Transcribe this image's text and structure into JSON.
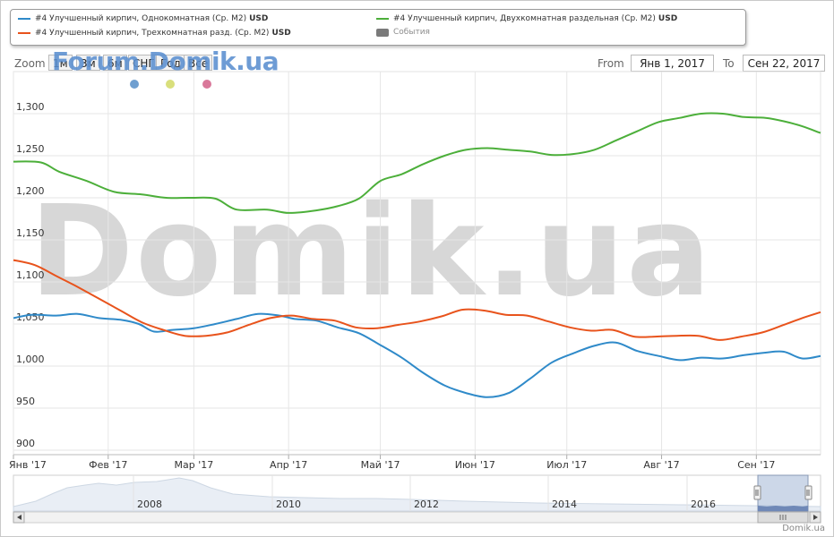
{
  "legend": {
    "items": [
      {
        "label": "#4 Улучшенный кирпич, Однокомнатная (Ср. М2)",
        "unit": "USD",
        "color": "#2f8ac9"
      },
      {
        "label": "#4 Улучшенный кирпич, Двухкомнатная раздельная (Ср. М2)",
        "unit": "USD",
        "color": "#4caf3a"
      },
      {
        "label": "#4 Улучшенный кирпич, Трехкомнатная разд. (Ср. М2)",
        "unit": "USD",
        "color": "#e8531c"
      },
      {
        "label": "События",
        "color": "#7a7a7a"
      }
    ]
  },
  "toolbar": {
    "zoom_label": "Zoom",
    "zoom_buttons": [
      "1м",
      "3м",
      "6м",
      "СНГ",
      "Год",
      "Всё"
    ],
    "watermark_brand": "Forum.Domik.ua",
    "from_label": "From",
    "from_value": "Янв 1, 2017",
    "to_label": "To",
    "to_value": "Сен 22, 2017"
  },
  "event_dot_colors": [
    "#6f9fd0",
    "#d9df7c",
    "#d9789a"
  ],
  "watermark": "Domik.ua",
  "footer": "Domik.ua",
  "chart_data": {
    "type": "line",
    "ylim": [
      900,
      1350
    ],
    "yticks": [
      900,
      950,
      1000,
      1050,
      1100,
      1150,
      1200,
      1250,
      1300
    ],
    "ytick_labels": [
      "900",
      "950",
      "1,000",
      "1,050",
      "1,100",
      "1,150",
      "1,200",
      "1,250",
      "1,300"
    ],
    "xlim": [
      "2017-01-01",
      "2017-09-22"
    ],
    "xticks": [
      "2017-01-01",
      "2017-02-01",
      "2017-03-01",
      "2017-04-01",
      "2017-05-01",
      "2017-06-01",
      "2017-07-01",
      "2017-08-01",
      "2017-09-01"
    ],
    "xtick_labels": [
      "Янв '17",
      "Фев '17",
      "Мар '17",
      "Апр '17",
      "Май '17",
      "Июн '17",
      "Июл '17",
      "Авг '17",
      "Сен '17"
    ],
    "grid": true,
    "series": [
      {
        "name": "#4 Улучшенный кирпич, Однокомнатная (Ср. М2)",
        "color": "#2f8ac9",
        "points": [
          [
            "2017-01-01",
            1057
          ],
          [
            "2017-01-07",
            1061
          ],
          [
            "2017-01-15",
            1060
          ],
          [
            "2017-01-22",
            1062
          ],
          [
            "2017-01-29",
            1057
          ],
          [
            "2017-02-05",
            1055
          ],
          [
            "2017-02-11",
            1050
          ],
          [
            "2017-02-16",
            1041
          ],
          [
            "2017-02-22",
            1043
          ],
          [
            "2017-03-01",
            1045
          ],
          [
            "2017-03-08",
            1050
          ],
          [
            "2017-03-15",
            1056
          ],
          [
            "2017-03-22",
            1062
          ],
          [
            "2017-03-29",
            1060
          ],
          [
            "2017-04-03",
            1056
          ],
          [
            "2017-04-10",
            1054
          ],
          [
            "2017-04-17",
            1046
          ],
          [
            "2017-04-24",
            1039
          ],
          [
            "2017-05-01",
            1025
          ],
          [
            "2017-05-08",
            1010
          ],
          [
            "2017-05-15",
            992
          ],
          [
            "2017-05-22",
            977
          ],
          [
            "2017-05-29",
            968
          ],
          [
            "2017-06-05",
            963
          ],
          [
            "2017-06-12",
            968
          ],
          [
            "2017-06-19",
            985
          ],
          [
            "2017-06-26",
            1004
          ],
          [
            "2017-07-03",
            1015
          ],
          [
            "2017-07-10",
            1024
          ],
          [
            "2017-07-17",
            1028
          ],
          [
            "2017-07-24",
            1018
          ],
          [
            "2017-07-31",
            1012
          ],
          [
            "2017-08-07",
            1007
          ],
          [
            "2017-08-14",
            1010
          ],
          [
            "2017-08-21",
            1009
          ],
          [
            "2017-08-28",
            1013
          ],
          [
            "2017-09-04",
            1016
          ],
          [
            "2017-09-10",
            1017
          ],
          [
            "2017-09-16",
            1009
          ],
          [
            "2017-09-22",
            1012
          ]
        ]
      },
      {
        "name": "#4 Улучшенный кирпич, Двухкомнатная раздельная (Ср. М2)",
        "color": "#4caf3a",
        "points": [
          [
            "2017-01-01",
            1243
          ],
          [
            "2017-01-10",
            1242
          ],
          [
            "2017-01-16",
            1231
          ],
          [
            "2017-01-25",
            1220
          ],
          [
            "2017-02-03",
            1207
          ],
          [
            "2017-02-12",
            1204
          ],
          [
            "2017-02-20",
            1200
          ],
          [
            "2017-02-28",
            1200
          ],
          [
            "2017-03-08",
            1199
          ],
          [
            "2017-03-15",
            1186
          ],
          [
            "2017-03-25",
            1186
          ],
          [
            "2017-04-01",
            1182
          ],
          [
            "2017-04-10",
            1185
          ],
          [
            "2017-04-17",
            1190
          ],
          [
            "2017-04-24",
            1199
          ],
          [
            "2017-05-01",
            1220
          ],
          [
            "2017-05-08",
            1228
          ],
          [
            "2017-05-15",
            1240
          ],
          [
            "2017-05-22",
            1250
          ],
          [
            "2017-05-29",
            1257
          ],
          [
            "2017-06-05",
            1259
          ],
          [
            "2017-06-12",
            1257
          ],
          [
            "2017-06-19",
            1255
          ],
          [
            "2017-06-26",
            1251
          ],
          [
            "2017-07-03",
            1252
          ],
          [
            "2017-07-10",
            1257
          ],
          [
            "2017-07-17",
            1268
          ],
          [
            "2017-07-24",
            1279
          ],
          [
            "2017-07-31",
            1290
          ],
          [
            "2017-08-07",
            1295
          ],
          [
            "2017-08-14",
            1300
          ],
          [
            "2017-08-21",
            1300
          ],
          [
            "2017-08-28",
            1296
          ],
          [
            "2017-09-04",
            1295
          ],
          [
            "2017-09-10",
            1291
          ],
          [
            "2017-09-16",
            1285
          ],
          [
            "2017-09-22",
            1277
          ]
        ]
      },
      {
        "name": "#4 Улучшенный кирпич, Трехкомнатная разд. (Ср. М2)",
        "color": "#e8531c",
        "points": [
          [
            "2017-01-01",
            1126
          ],
          [
            "2017-01-08",
            1120
          ],
          [
            "2017-01-15",
            1107
          ],
          [
            "2017-01-22",
            1094
          ],
          [
            "2017-01-29",
            1080
          ],
          [
            "2017-02-05",
            1066
          ],
          [
            "2017-02-12",
            1052
          ],
          [
            "2017-02-19",
            1043
          ],
          [
            "2017-02-26",
            1036
          ],
          [
            "2017-03-05",
            1036
          ],
          [
            "2017-03-12",
            1040
          ],
          [
            "2017-03-19",
            1049
          ],
          [
            "2017-03-26",
            1057
          ],
          [
            "2017-04-02",
            1060
          ],
          [
            "2017-04-09",
            1056
          ],
          [
            "2017-04-16",
            1054
          ],
          [
            "2017-04-23",
            1046
          ],
          [
            "2017-04-30",
            1045
          ],
          [
            "2017-05-07",
            1049
          ],
          [
            "2017-05-14",
            1053
          ],
          [
            "2017-05-21",
            1059
          ],
          [
            "2017-05-28",
            1067
          ],
          [
            "2017-06-04",
            1066
          ],
          [
            "2017-06-11",
            1061
          ],
          [
            "2017-06-18",
            1060
          ],
          [
            "2017-06-25",
            1053
          ],
          [
            "2017-07-02",
            1046
          ],
          [
            "2017-07-09",
            1042
          ],
          [
            "2017-07-16",
            1043
          ],
          [
            "2017-07-23",
            1035
          ],
          [
            "2017-07-30",
            1035
          ],
          [
            "2017-08-06",
            1036
          ],
          [
            "2017-08-13",
            1036
          ],
          [
            "2017-08-20",
            1031
          ],
          [
            "2017-08-27",
            1035
          ],
          [
            "2017-09-03",
            1040
          ],
          [
            "2017-09-10",
            1049
          ],
          [
            "2017-09-16",
            1057
          ],
          [
            "2017-09-22",
            1064
          ]
        ]
      }
    ]
  },
  "navigator": {
    "year_labels": [
      "2008",
      "2010",
      "2012",
      "2014",
      "2016"
    ],
    "scroll_left_icon": "chevron-left-icon",
    "scroll_right_icon": "chevron-right-icon",
    "grip_icon": "grip-icon"
  }
}
